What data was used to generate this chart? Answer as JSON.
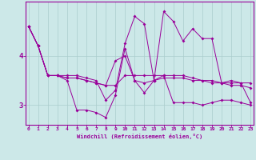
{
  "xlabel": "Windchill (Refroidissement éolien,°C)",
  "bg_color": "#cce8e8",
  "line_color": "#990099",
  "grid_color": "#aacccc",
  "series": [
    [
      4.6,
      4.2,
      3.6,
      3.6,
      3.5,
      2.9,
      2.9,
      2.85,
      2.75,
      3.2,
      4.15,
      3.5,
      3.25,
      3.5,
      3.6,
      3.05,
      3.05,
      3.05,
      3.0,
      3.05,
      3.1,
      3.1,
      3.05,
      3.0
    ],
    [
      4.6,
      4.2,
      3.6,
      3.6,
      3.55,
      3.55,
      3.5,
      3.45,
      3.4,
      3.9,
      4.0,
      3.5,
      3.45,
      3.5,
      3.55,
      3.55,
      3.55,
      3.5,
      3.5,
      3.5,
      3.45,
      3.45,
      3.45,
      3.45
    ],
    [
      4.6,
      4.2,
      3.6,
      3.6,
      3.55,
      3.55,
      3.5,
      3.45,
      3.4,
      3.4,
      3.6,
      3.6,
      3.6,
      3.6,
      3.6,
      3.6,
      3.6,
      3.55,
      3.5,
      3.45,
      3.45,
      3.4,
      3.4,
      3.35
    ],
    [
      4.6,
      4.2,
      3.6,
      3.6,
      3.6,
      3.6,
      3.55,
      3.5,
      3.1,
      3.3,
      4.25,
      4.8,
      4.65,
      3.5,
      4.9,
      4.7,
      4.3,
      4.55,
      4.35,
      4.35,
      3.45,
      3.5,
      3.45,
      3.05
    ]
  ],
  "x_ticks": [
    0,
    1,
    2,
    3,
    4,
    5,
    6,
    7,
    8,
    9,
    10,
    11,
    12,
    13,
    14,
    15,
    16,
    17,
    18,
    19,
    20,
    21,
    22,
    23
  ],
  "ylim": [
    2.6,
    5.1
  ],
  "yticks": [
    3,
    4
  ],
  "xlim": [
    -0.3,
    23.3
  ]
}
